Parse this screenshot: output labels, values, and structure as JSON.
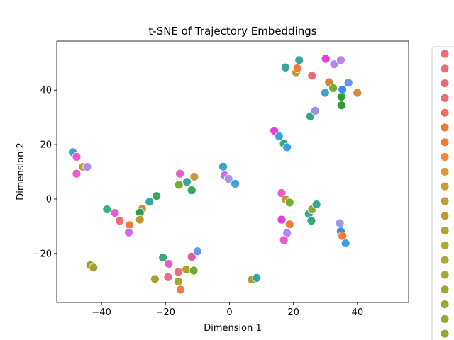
{
  "chart_data": {
    "type": "scatter",
    "title": "t-SNE of Trajectory Embeddings",
    "xlabel": "Dimension 1",
    "ylabel": "Dimension 2",
    "xlim": [
      -54,
      56
    ],
    "ylim": [
      -38,
      58
    ],
    "xticks": [
      -40,
      -20,
      0,
      20,
      40
    ],
    "yticks": [
      -20,
      0,
      20,
      40
    ],
    "grid": false,
    "legend_placement": "right (outside plot, cropped)",
    "legend_colors": [
      "#ec6b74",
      "#ec6b74",
      "#ec6b74",
      "#ec6b74",
      "#ee6e56",
      "#f07a2f",
      "#f07a2f",
      "#ef8a35",
      "#d99a3a",
      "#cf9d36",
      "#c89b38",
      "#bf9c36",
      "#b7a033",
      "#acab35",
      "#a8a934",
      "#a4a833",
      "#9fa633",
      "#98a832",
      "#93aa33",
      "#8eab34",
      "#86ae35"
    ],
    "points": [
      {
        "x": -49,
        "y": 17.2,
        "color": "#3ba3dc"
      },
      {
        "x": -47.8,
        "y": 15.5,
        "color": "#ea5bcd"
      },
      {
        "x": -47.8,
        "y": 9.3,
        "color": "#ea5bcd"
      },
      {
        "x": -45.8,
        "y": 11.8,
        "color": "#b6a035"
      },
      {
        "x": -44.5,
        "y": 11.8,
        "color": "#b686ec"
      },
      {
        "x": -38.3,
        "y": -3.8,
        "color": "#37b180"
      },
      {
        "x": -35.8,
        "y": -5.1,
        "color": "#ea5bcd"
      },
      {
        "x": -34.3,
        "y": -8.0,
        "color": "#ec6b74"
      },
      {
        "x": -31.3,
        "y": -9.6,
        "color": "#ef7b3c"
      },
      {
        "x": -31.5,
        "y": -12.3,
        "color": "#c86fe8"
      },
      {
        "x": -27.3,
        "y": -3.6,
        "color": "#d28f35"
      },
      {
        "x": -28.0,
        "y": -5.0,
        "color": "#2f9e4c"
      },
      {
        "x": -28.0,
        "y": -7.6,
        "color": "#bb9a36"
      },
      {
        "x": -25.0,
        "y": -1.0,
        "color": "#3aa5a3"
      },
      {
        "x": -22.8,
        "y": 1.1,
        "color": "#3aa55e"
      },
      {
        "x": -43.5,
        "y": -24.3,
        "color": "#8ea52e"
      },
      {
        "x": -42.5,
        "y": -25.2,
        "color": "#ab9f32"
      },
      {
        "x": -23.3,
        "y": -29.4,
        "color": "#a4a133"
      },
      {
        "x": -20.8,
        "y": -21.5,
        "color": "#3aa57b"
      },
      {
        "x": -19.0,
        "y": -23.8,
        "color": "#ea5bcd"
      },
      {
        "x": -19.2,
        "y": -28.7,
        "color": "#ec6b88"
      },
      {
        "x": -16.0,
        "y": -26.8,
        "color": "#ec6b88"
      },
      {
        "x": -16.0,
        "y": -30.3,
        "color": "#a8a333"
      },
      {
        "x": -15.3,
        "y": -33.3,
        "color": "#ef7b3c"
      },
      {
        "x": -13.5,
        "y": -25.9,
        "color": "#b09f33"
      },
      {
        "x": -11.8,
        "y": -21.2,
        "color": "#e8569f"
      },
      {
        "x": -11.2,
        "y": -26.3,
        "color": "#6fa832"
      },
      {
        "x": -10.0,
        "y": -19.2,
        "color": "#6f93e8"
      },
      {
        "x": -15.5,
        "y": 9.3,
        "color": "#ea5bcd"
      },
      {
        "x": -15.8,
        "y": 5.2,
        "color": "#7aac35"
      },
      {
        "x": -13.3,
        "y": 6.3,
        "color": "#3aa59a"
      },
      {
        "x": -11.0,
        "y": 8.2,
        "color": "#c39b38"
      },
      {
        "x": -11.8,
        "y": 3.2,
        "color": "#3aa55e"
      },
      {
        "x": -2.0,
        "y": 11.9,
        "color": "#3aa5c8"
      },
      {
        "x": -1.5,
        "y": 8.7,
        "color": "#c86fe8"
      },
      {
        "x": -0.3,
        "y": 7.4,
        "color": "#a098ec"
      },
      {
        "x": 1.8,
        "y": 5.6,
        "color": "#3ba3dc"
      },
      {
        "x": 7.0,
        "y": -29.6,
        "color": "#a6a133"
      },
      {
        "x": 8.5,
        "y": -29.0,
        "color": "#3aa5a3"
      },
      {
        "x": 14.0,
        "y": 25.1,
        "color": "#e53fd4"
      },
      {
        "x": 15.5,
        "y": 23.0,
        "color": "#3ba3dc"
      },
      {
        "x": 17.0,
        "y": 20.3,
        "color": "#3aa57b"
      },
      {
        "x": 18.0,
        "y": 19.0,
        "color": "#3ba3dc"
      },
      {
        "x": 17.5,
        "y": 48.3,
        "color": "#3aa59a"
      },
      {
        "x": 20.8,
        "y": 46.5,
        "color": "#b0a033"
      },
      {
        "x": 21.2,
        "y": 48.0,
        "color": "#ef7b3c"
      },
      {
        "x": 21.8,
        "y": 51.0,
        "color": "#3aa59a"
      },
      {
        "x": 25.8,
        "y": 45.3,
        "color": "#ec6b74"
      },
      {
        "x": 25.3,
        "y": 30.4,
        "color": "#37a583"
      },
      {
        "x": 26.8,
        "y": 32.4,
        "color": "#a08ee6"
      },
      {
        "x": 29.9,
        "y": 39.0,
        "color": "#3aa5c8"
      },
      {
        "x": 30.1,
        "y": 51.5,
        "color": "#e53fd4"
      },
      {
        "x": 31.1,
        "y": 42.9,
        "color": "#cf8a35"
      },
      {
        "x": 32.4,
        "y": 40.7,
        "color": "#7aac35"
      },
      {
        "x": 32.7,
        "y": 49.5,
        "color": "#b686ec"
      },
      {
        "x": 34.8,
        "y": 51.0,
        "color": "#b686ec"
      },
      {
        "x": 35.0,
        "y": 37.6,
        "color": "#2f9e2c"
      },
      {
        "x": 35.0,
        "y": 34.4,
        "color": "#2f9e2c"
      },
      {
        "x": 35.3,
        "y": 40.2,
        "color": "#3b8fe0"
      },
      {
        "x": 37.2,
        "y": 42.7,
        "color": "#6f93e8"
      },
      {
        "x": 40.0,
        "y": 39.0,
        "color": "#d28f35"
      },
      {
        "x": 16.3,
        "y": 2.2,
        "color": "#ea5bcd"
      },
      {
        "x": 17.5,
        "y": -0.1,
        "color": "#c39b38"
      },
      {
        "x": 18.8,
        "y": -1.3,
        "color": "#6fb032"
      },
      {
        "x": 16.3,
        "y": -7.6,
        "color": "#e53fd4"
      },
      {
        "x": 18.8,
        "y": -9.3,
        "color": "#ef7b3c"
      },
      {
        "x": 18.0,
        "y": -12.5,
        "color": "#b686ec"
      },
      {
        "x": 17.0,
        "y": -15.1,
        "color": "#ea5bcd"
      },
      {
        "x": 24.8,
        "y": -5.5,
        "color": "#3aa59a"
      },
      {
        "x": 25.8,
        "y": -3.8,
        "color": "#8ea52e"
      },
      {
        "x": 27.2,
        "y": -2.0,
        "color": "#3aa59a"
      },
      {
        "x": 25.6,
        "y": -8.0,
        "color": "#3aa57b"
      },
      {
        "x": 34.5,
        "y": -8.9,
        "color": "#a098ec"
      },
      {
        "x": 34.8,
        "y": -11.9,
        "color": "#3b8fe0"
      },
      {
        "x": 35.3,
        "y": -13.6,
        "color": "#ef7b3c"
      },
      {
        "x": 36.3,
        "y": -16.3,
        "color": "#3ba3dc"
      }
    ]
  }
}
